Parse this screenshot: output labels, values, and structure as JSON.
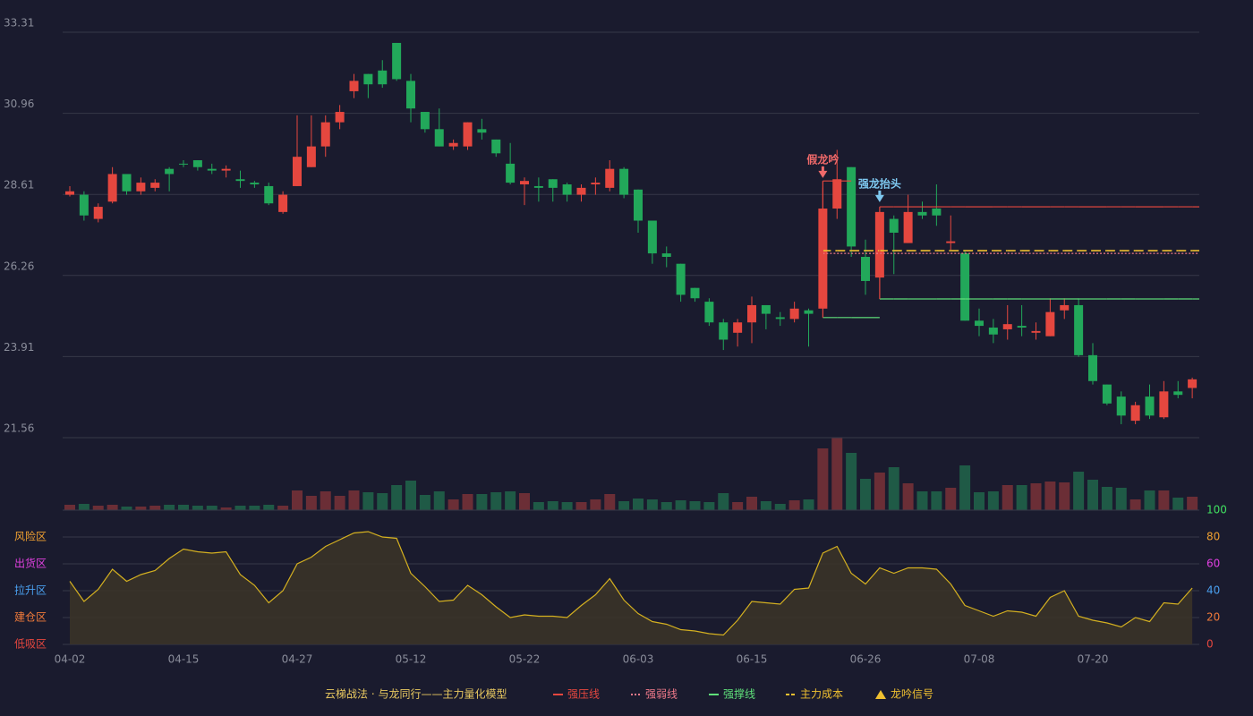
{
  "chart_data": [
    {
      "type": "candlestick",
      "open": [
        28.6,
        28.6,
        27.9,
        28.4,
        29.2,
        28.7,
        28.8,
        29.35,
        29.5,
        29.6,
        29.35,
        29.3,
        29.05,
        28.95,
        28.85,
        28.1,
        28.85,
        29.4,
        30.0,
        30.7,
        31.6,
        32.1,
        32.2,
        33.0,
        31.9,
        31.0,
        30.5,
        30.0,
        30.0,
        30.5,
        30.2,
        29.5,
        28.9,
        28.85,
        29.05,
        28.9,
        28.6,
        28.9,
        28.8,
        29.35,
        28.75,
        27.85,
        26.9,
        26.6,
        25.9,
        25.5,
        24.9,
        24.6,
        24.9,
        25.4,
        25.05,
        25.0,
        25.25,
        25.3,
        28.2,
        29.4,
        26.8,
        26.2,
        27.9,
        27.2,
        28.1,
        28.2,
        27.2,
        26.9,
        24.95,
        24.75,
        24.7,
        24.8,
        24.6,
        24.5,
        25.25,
        25.4,
        23.95,
        23.1,
        22.75,
        22.05,
        22.75,
        22.15,
        22.9,
        23.0
      ],
      "high": [
        28.85,
        28.7,
        28.35,
        29.4,
        29.2,
        29.1,
        29.05,
        29.4,
        29.6,
        29.6,
        29.5,
        29.45,
        29.3,
        29.0,
        28.95,
        28.7,
        30.9,
        30.9,
        30.9,
        31.2,
        32.1,
        32.1,
        32.5,
        33.0,
        32.1,
        31.0,
        31.1,
        30.2,
        30.7,
        30.8,
        30.2,
        30.1,
        29.1,
        29.1,
        29.05,
        28.95,
        28.9,
        29.1,
        29.6,
        29.4,
        28.75,
        27.85,
        27.1,
        26.6,
        25.9,
        25.6,
        25.0,
        25.0,
        25.65,
        25.4,
        25.2,
        25.5,
        25.3,
        28.8,
        29.9,
        29.4,
        27.3,
        28.1,
        28.0,
        28.6,
        28.4,
        28.9,
        28.0,
        27.0,
        25.3,
        25.0,
        25.4,
        25.4,
        24.9,
        25.6,
        25.6,
        25.6,
        24.3,
        23.1,
        22.9,
        22.6,
        23.1,
        23.2,
        23.2,
        23.3
      ],
      "low": [
        28.55,
        27.85,
        27.8,
        28.35,
        28.6,
        28.6,
        28.7,
        28.7,
        29.4,
        29.3,
        29.2,
        29.1,
        28.8,
        28.8,
        28.3,
        28.05,
        28.85,
        29.4,
        29.7,
        30.5,
        31.4,
        31.4,
        31.7,
        31.9,
        30.7,
        30.4,
        30.0,
        29.9,
        29.9,
        30.2,
        29.7,
        28.9,
        28.3,
        28.4,
        28.4,
        28.4,
        28.4,
        28.6,
        28.7,
        28.5,
        27.5,
        26.6,
        26.5,
        25.5,
        25.5,
        24.8,
        24.1,
        24.2,
        24.3,
        24.7,
        24.8,
        24.9,
        24.2,
        25.3,
        27.9,
        26.8,
        25.7,
        26.2,
        26.3,
        27.2,
        27.9,
        27.7,
        27.0,
        24.95,
        24.5,
        24.3,
        24.4,
        24.5,
        24.4,
        24.5,
        25.0,
        23.9,
        23.1,
        22.5,
        21.95,
        21.95,
        22.1,
        22.1,
        22.7,
        22.7
      ],
      "close": [
        28.7,
        28.0,
        28.25,
        29.2,
        28.7,
        28.95,
        28.95,
        29.2,
        29.48,
        29.4,
        29.3,
        29.35,
        29.0,
        28.9,
        28.35,
        28.6,
        29.7,
        30.0,
        30.7,
        31.0,
        31.9,
        31.8,
        31.8,
        31.95,
        31.1,
        30.5,
        30.0,
        30.1,
        30.7,
        30.4,
        29.8,
        28.95,
        29.0,
        28.8,
        28.8,
        28.6,
        28.8,
        28.95,
        29.35,
        28.6,
        27.85,
        26.9,
        26.8,
        25.7,
        25.6,
        24.9,
        24.4,
        24.9,
        25.4,
        25.15,
        25.0,
        25.3,
        25.15,
        28.2,
        29.05,
        27.1,
        26.1,
        28.1,
        27.5,
        28.1,
        28.0,
        28.0,
        27.25,
        24.95,
        24.8,
        24.55,
        24.85,
        24.75,
        24.65,
        25.2,
        25.4,
        23.95,
        23.2,
        22.55,
        22.2,
        22.5,
        22.2,
        22.9,
        22.8,
        23.25
      ],
      "up_color": "#e5473f",
      "down_color": "#22a85a",
      "ylim": [
        21.56,
        33.31
      ],
      "yticks": [
        21.56,
        23.91,
        26.26,
        28.61,
        30.96,
        33.31
      ],
      "grid": true,
      "legend_title": "云梯战法 · 与龙同行——主力量化模型",
      "series": [
        {
          "name": "强压线",
          "color": "#e5473f",
          "style": "solid",
          "values": [
            null,
            null,
            null,
            null,
            null,
            null,
            null,
            null,
            null,
            null,
            null,
            null,
            null,
            null,
            null,
            null,
            null,
            null,
            null,
            null,
            null,
            null,
            null,
            null,
            null,
            null,
            null,
            null,
            null,
            null,
            null,
            null,
            null,
            null,
            null,
            null,
            null,
            null,
            null,
            null,
            null,
            null,
            null,
            null,
            null,
            null,
            null,
            null,
            null,
            null,
            null,
            null,
            null,
            29.0,
            29.0,
            null,
            null,
            28.25,
            28.25,
            28.25,
            28.25,
            28.25,
            28.25,
            28.25,
            28.25,
            28.25,
            28.25,
            28.25,
            28.25,
            28.25,
            28.25,
            28.25,
            28.25,
            28.25,
            28.25,
            28.25,
            28.25,
            28.25,
            28.25,
            28.25
          ]
        },
        {
          "name": "强弱线",
          "color": "#f07a8a",
          "style": "dotted",
          "values": [
            null,
            null,
            null,
            null,
            null,
            null,
            null,
            null,
            null,
            null,
            null,
            null,
            null,
            null,
            null,
            null,
            null,
            null,
            null,
            null,
            null,
            null,
            null,
            null,
            null,
            null,
            null,
            null,
            null,
            null,
            null,
            null,
            null,
            null,
            null,
            null,
            null,
            null,
            null,
            null,
            null,
            null,
            null,
            null,
            null,
            null,
            null,
            null,
            null,
            null,
            null,
            null,
            null,
            26.9,
            26.9,
            26.9,
            26.9,
            26.9,
            26.9,
            26.9,
            26.9,
            26.9,
            26.9,
            26.9,
            26.9,
            26.9,
            26.9,
            26.9,
            26.9,
            26.9,
            26.9,
            26.9,
            26.9,
            26.9,
            26.9,
            26.9,
            26.9,
            26.9,
            26.9,
            26.9
          ]
        },
        {
          "name": "强撑线",
          "color": "#5fe07a",
          "style": "solid",
          "values": [
            null,
            null,
            null,
            null,
            null,
            null,
            null,
            null,
            null,
            null,
            null,
            null,
            null,
            null,
            null,
            null,
            null,
            null,
            null,
            null,
            null,
            null,
            null,
            null,
            null,
            null,
            null,
            null,
            null,
            null,
            null,
            null,
            null,
            null,
            null,
            null,
            null,
            null,
            null,
            null,
            null,
            null,
            null,
            null,
            null,
            null,
            null,
            null,
            null,
            null,
            null,
            null,
            null,
            25.04,
            25.04,
            25.04,
            25.04,
            25.58,
            25.58,
            25.58,
            25.58,
            25.58,
            25.58,
            25.58,
            25.58,
            25.58,
            25.58,
            25.58,
            25.58,
            25.58,
            25.58,
            25.58,
            25.58,
            25.58,
            25.58,
            25.58,
            25.58,
            25.58,
            25.58,
            25.58
          ]
        },
        {
          "name": "主力成本",
          "color": "#f0c030",
          "style": "dashed",
          "values": [
            null,
            null,
            null,
            null,
            null,
            null,
            null,
            null,
            null,
            null,
            null,
            null,
            null,
            null,
            null,
            null,
            null,
            null,
            null,
            null,
            null,
            null,
            null,
            null,
            null,
            null,
            null,
            null,
            null,
            null,
            null,
            null,
            null,
            null,
            null,
            null,
            null,
            null,
            null,
            null,
            null,
            null,
            null,
            null,
            null,
            null,
            null,
            null,
            null,
            null,
            null,
            null,
            null,
            26.98,
            26.98,
            26.98,
            26.98,
            26.98,
            26.98,
            26.98,
            26.98,
            26.98,
            26.98,
            26.98,
            26.98,
            26.98,
            26.98,
            26.98,
            26.98,
            26.98,
            26.98,
            26.98,
            26.98,
            26.98,
            26.98,
            26.98,
            26.98,
            26.98,
            26.98,
            26.98
          ]
        }
      ],
      "signals": {
        "name": "龙吟信号",
        "color": "#f0c030",
        "items": [
          {
            "label": "假龙吟",
            "at": 53,
            "color": "#f06a6a"
          },
          {
            "label": "强龙抬头",
            "at": 57,
            "color": "#7ec8f0"
          }
        ]
      }
    },
    {
      "type": "bar",
      "values": [
        6,
        7,
        5,
        6,
        4,
        4,
        5,
        6,
        6,
        5,
        5,
        3,
        5,
        5,
        6,
        5,
        22,
        16,
        21,
        16,
        22,
        20,
        19,
        28,
        33,
        17,
        21,
        12,
        18,
        18,
        20,
        21,
        19,
        9,
        10,
        9,
        9,
        12,
        18,
        10,
        13,
        12,
        9,
        11,
        10,
        9,
        19,
        9,
        15,
        10,
        7,
        11,
        12,
        69,
        81,
        64,
        35,
        42,
        48,
        30,
        21,
        21,
        25,
        50,
        20,
        21,
        28,
        28,
        30,
        32,
        31,
        43,
        34,
        26,
        25,
        12,
        22,
        22,
        14,
        15
      ],
      "up_color": "#6b2e36",
      "down_color": "#1f5a46",
      "ylim": [
        0,
        81
      ]
    },
    {
      "type": "line",
      "categories": [
        "04-02",
        null,
        null,
        null,
        null,
        null,
        null,
        null,
        "04-15",
        null,
        null,
        null,
        null,
        null,
        null,
        null,
        "04-27",
        null,
        null,
        null,
        null,
        null,
        null,
        null,
        "05-12",
        null,
        null,
        null,
        null,
        null,
        null,
        null,
        "05-22",
        null,
        null,
        null,
        null,
        null,
        null,
        null,
        "06-03",
        null,
        null,
        null,
        null,
        null,
        null,
        null,
        "06-15",
        null,
        null,
        null,
        null,
        null,
        null,
        null,
        "06-26",
        null,
        null,
        null,
        null,
        null,
        null,
        null,
        "07-08",
        null,
        null,
        null,
        null,
        null,
        null,
        null,
        "07-20",
        null,
        null,
        null,
        null,
        null,
        null,
        null
      ],
      "values": [
        47,
        32,
        41,
        56,
        47,
        52,
        55,
        64,
        71,
        69,
        68,
        69,
        52,
        44,
        31,
        40,
        60,
        65,
        73,
        78,
        83,
        84,
        80,
        79,
        53,
        43,
        32,
        33,
        44,
        37,
        28,
        20,
        22,
        21,
        21,
        20,
        29,
        37,
        49,
        33,
        23,
        17,
        15,
        11,
        10,
        8,
        7,
        18,
        32,
        31,
        30,
        41,
        42,
        68,
        73,
        53,
        45,
        57,
        53,
        57,
        57,
        56,
        45,
        29,
        25,
        21,
        25,
        24,
        21,
        35,
        40,
        21,
        18,
        16,
        13,
        20,
        17,
        31,
        30,
        42
      ],
      "color": "#d4b020",
      "fill": "#3a3328",
      "ylim": [
        0,
        100
      ],
      "yticks": [
        0,
        20,
        40,
        60,
        80,
        100
      ],
      "grid": true,
      "ytick_colors": [
        "#e5473f",
        "#f07a3a",
        "#4aa0f0",
        "#e040e0",
        "#f0a030",
        "#40e060"
      ],
      "zones": [
        {
          "value": 0,
          "label": "低吸区"
        },
        {
          "value": 20,
          "label": "建仓区"
        },
        {
          "value": 40,
          "label": "拉升区"
        },
        {
          "value": 60,
          "label": "出货区"
        },
        {
          "value": 80,
          "label": "风险区"
        }
      ]
    }
  ]
}
